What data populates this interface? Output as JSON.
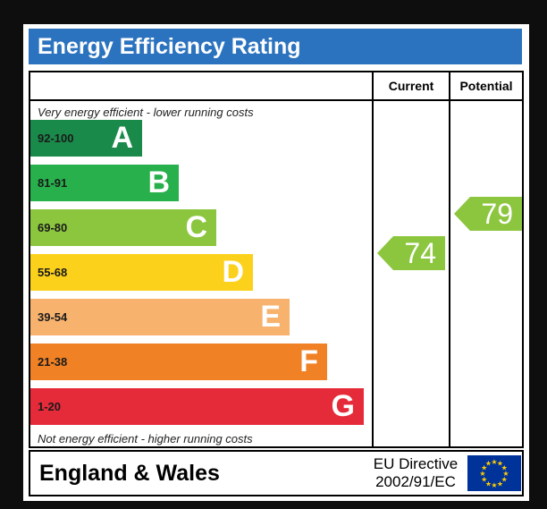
{
  "title": "Energy Efficiency Rating",
  "columns": {
    "current": "Current",
    "potential": "Potential"
  },
  "top_note": "Very energy efficient - lower running costs",
  "bottom_note": "Not energy efficient - higher running costs",
  "bands": [
    {
      "range": "92-100",
      "letter": "A",
      "color": "#1a8a4a"
    },
    {
      "range": "81-91",
      "letter": "B",
      "color": "#27b04b"
    },
    {
      "range": "69-80",
      "letter": "C",
      "color": "#8cc63f"
    },
    {
      "range": "55-68",
      "letter": "D",
      "color": "#fbd11c"
    },
    {
      "range": "39-54",
      "letter": "E",
      "color": "#f7b26e"
    },
    {
      "range": "21-38",
      "letter": "F",
      "color": "#f08124"
    },
    {
      "range": "1-20",
      "letter": "G",
      "color": "#e52b3a"
    }
  ],
  "current_rating": {
    "value": "74",
    "color": "#8cc63f"
  },
  "potential_rating": {
    "value": "79",
    "color": "#8cc63f"
  },
  "footer": {
    "region": "England & Wales",
    "directive_line1": "EU Directive",
    "directive_line2": "2002/91/EC",
    "flag_icon": "eu-flag-icon"
  }
}
